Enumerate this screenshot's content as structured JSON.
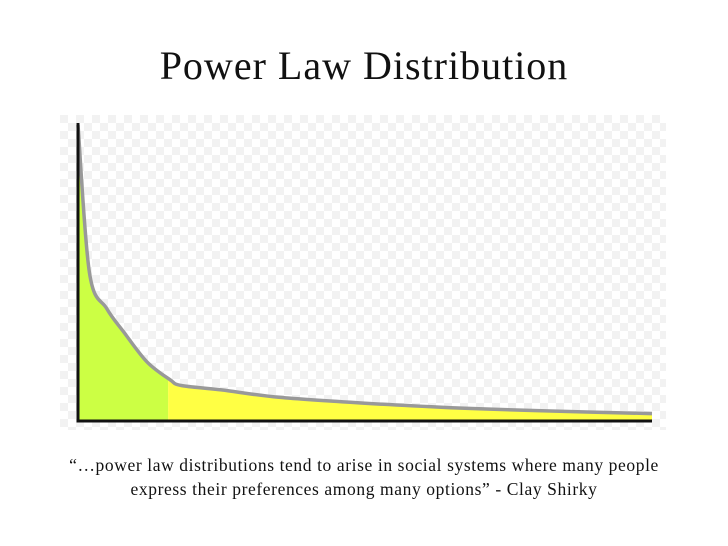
{
  "slide": {
    "title": "Power Law Distribution",
    "quote_line1": "“…power law distributions tend to arise in social systems where many people",
    "quote_line2": "express their preferences among many options” - Clay Shirky"
  },
  "colors": {
    "head_fill": "#ccff44",
    "tail_fill": "#ffff44",
    "curve": "#999999",
    "axis": "#111111",
    "checker_light": "#ffffff",
    "checker_dark": "#f2f2f2"
  },
  "chart_data": {
    "type": "area",
    "title": "",
    "xlabel": "",
    "ylabel": "",
    "grid": false,
    "legend": "none",
    "x": [
      0.0,
      0.02,
      0.05,
      0.08,
      0.12,
      0.16,
      0.18,
      0.25,
      0.35,
      0.5,
      0.65,
      0.8,
      1.0
    ],
    "y": [
      1.0,
      0.5,
      0.38,
      0.3,
      0.2,
      0.14,
      0.12,
      0.105,
      0.08,
      0.06,
      0.045,
      0.035,
      0.025
    ],
    "xlim": [
      0,
      1
    ],
    "ylim": [
      0,
      1
    ],
    "head_boundary_x": 0.157,
    "regions": [
      {
        "name": "head",
        "from": 0,
        "to": 0.157
      },
      {
        "name": "tail",
        "from": 0.157,
        "to": 1
      }
    ]
  }
}
